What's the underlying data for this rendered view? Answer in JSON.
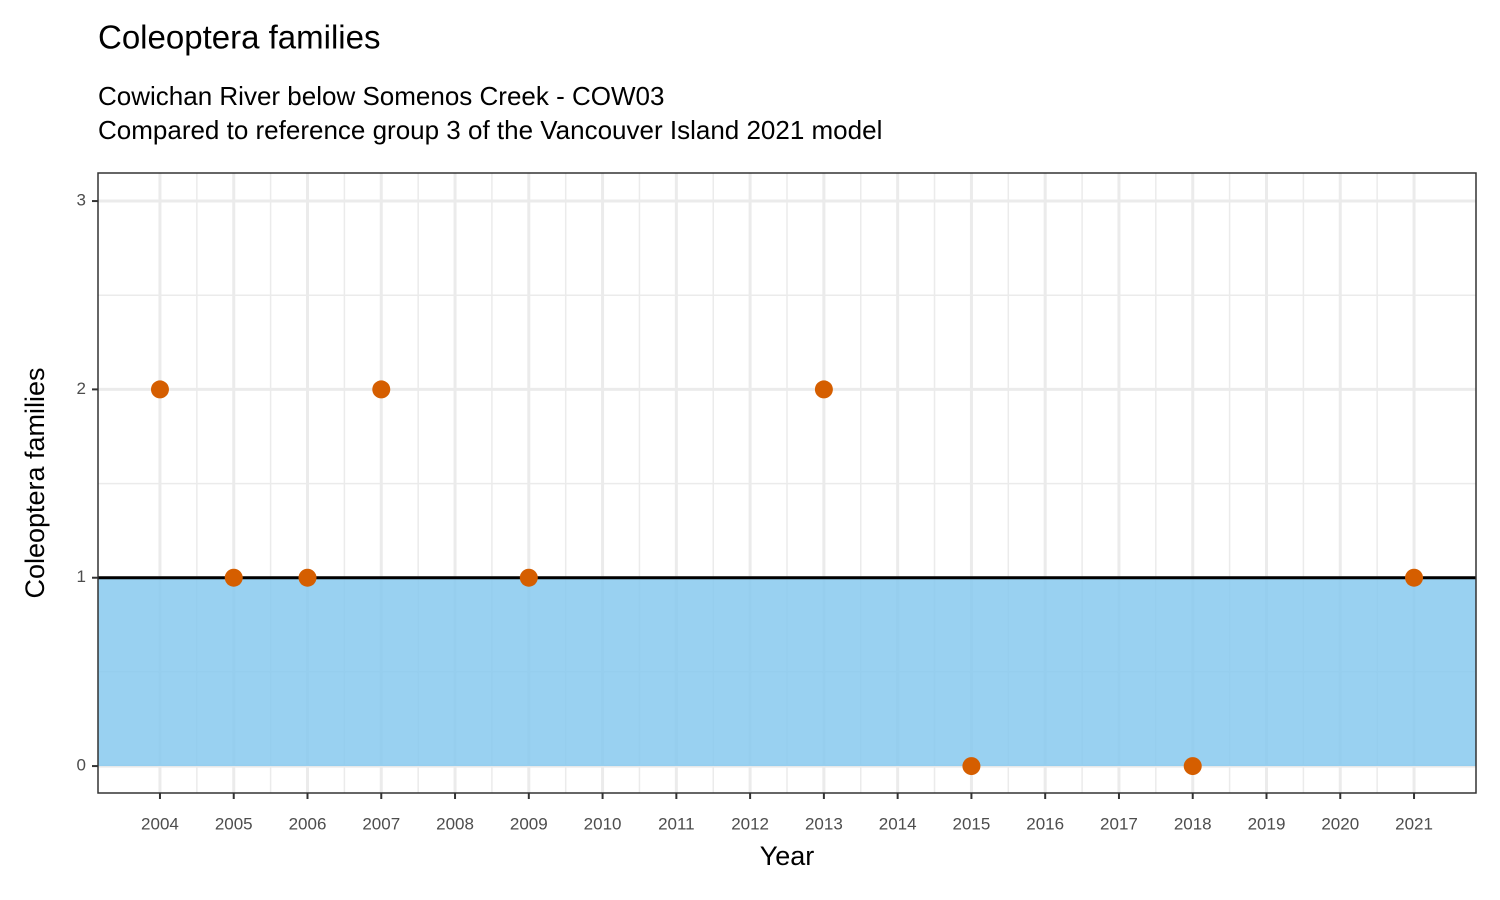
{
  "chart_data": {
    "type": "scatter",
    "title": "Coleoptera families",
    "subtitle": [
      "Cowichan River below Somenos Creek - COW03",
      "Compared to reference group 3 of the Vancouver Island 2021 model"
    ],
    "x_label": "Year",
    "y_label": "Coleoptera families",
    "x": [
      2004,
      2005,
      2006,
      2007,
      2009,
      2013,
      2015,
      2018,
      2021
    ],
    "values": [
      2,
      1,
      1,
      2,
      1,
      2,
      0,
      0,
      1
    ],
    "color": "#d55e00",
    "band": [
      0,
      1
    ],
    "band_color": "#87c9ee",
    "reference_line": 1,
    "xlim": [
      2003.16,
      2021.84
    ],
    "xticks": [
      2004,
      2005,
      2006,
      2007,
      2008,
      2009,
      2010,
      2011,
      2012,
      2013,
      2014,
      2015,
      2016,
      2017,
      2018,
      2019,
      2020,
      2021
    ],
    "ylim": [
      -0.143,
      3.149
    ],
    "yticks": [
      0,
      1,
      2,
      3
    ],
    "grid": true,
    "minor_grid": true
  }
}
